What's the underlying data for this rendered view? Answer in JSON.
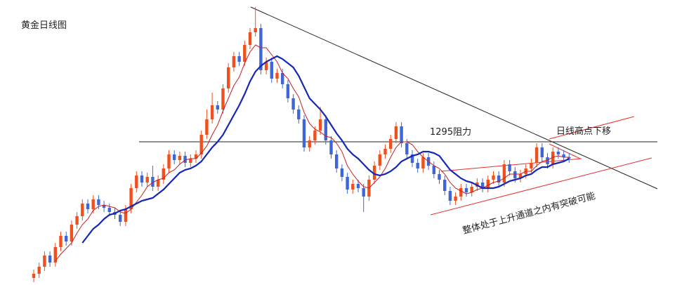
{
  "chart_data": {
    "type": "candlestick",
    "title": "黄金日线图",
    "ylim": [
      1193,
      1396
    ],
    "up_color": "#f0501e",
    "down_color": "#3e66d8",
    "open": [
      1198,
      1201,
      1206,
      1214,
      1209,
      1220,
      1228,
      1224,
      1236,
      1242,
      1251,
      1247,
      1254,
      1250,
      1248,
      1245,
      1243,
      1238,
      1247,
      1262,
      1271,
      1266,
      1270,
      1263,
      1268,
      1276,
      1286,
      1282,
      1285,
      1280,
      1283,
      1286,
      1300,
      1311,
      1321,
      1318,
      1333,
      1348,
      1356,
      1352,
      1364,
      1373,
      1376,
      1346,
      1352,
      1340,
      1344,
      1336,
      1326,
      1318,
      1311,
      1291,
      1296,
      1303,
      1311,
      1296,
      1286,
      1276,
      1270,
      1261,
      1265,
      1262,
      1256,
      1268,
      1278,
      1286,
      1290,
      1297,
      1306,
      1294,
      1286,
      1280,
      1276,
      1284,
      1278,
      1272,
      1268,
      1260,
      1253,
      1256,
      1262,
      1259,
      1263,
      1266,
      1262,
      1268,
      1271,
      1266,
      1279,
      1274,
      1269,
      1272,
      1276,
      1280,
      1291,
      1284,
      1279,
      1288,
      1286,
      1284
    ],
    "high": [
      1204,
      1209,
      1217,
      1217,
      1223,
      1231,
      1231,
      1239,
      1245,
      1254,
      1254,
      1257,
      1257,
      1253,
      1251,
      1248,
      1246,
      1250,
      1265,
      1274,
      1274,
      1273,
      1278,
      1271,
      1279,
      1289,
      1289,
      1288,
      1288,
      1286,
      1289,
      1303,
      1318,
      1330,
      1324,
      1336,
      1351,
      1359,
      1359,
      1367,
      1376,
      1391,
      1379,
      1355,
      1355,
      1347,
      1347,
      1339,
      1329,
      1321,
      1314,
      1299,
      1306,
      1320,
      1314,
      1299,
      1289,
      1279,
      1273,
      1268,
      1268,
      1265,
      1271,
      1281,
      1289,
      1293,
      1300,
      1309,
      1309,
      1297,
      1289,
      1283,
      1287,
      1287,
      1281,
      1275,
      1271,
      1263,
      1259,
      1265,
      1265,
      1266,
      1269,
      1269,
      1271,
      1274,
      1274,
      1282,
      1282,
      1277,
      1275,
      1279,
      1283,
      1294,
      1294,
      1287,
      1291,
      1291,
      1289,
      1287
    ],
    "low": [
      1195,
      1198,
      1203,
      1206,
      1206,
      1217,
      1221,
      1221,
      1233,
      1239,
      1244,
      1244,
      1247,
      1245,
      1242,
      1240,
      1235,
      1235,
      1244,
      1259,
      1263,
      1263,
      1260,
      1260,
      1265,
      1273,
      1279,
      1279,
      1277,
      1277,
      1280,
      1283,
      1297,
      1308,
      1315,
      1315,
      1330,
      1345,
      1349,
      1349,
      1361,
      1370,
      1343,
      1343,
      1337,
      1337,
      1333,
      1323,
      1315,
      1308,
      1288,
      1288,
      1293,
      1300,
      1293,
      1283,
      1273,
      1267,
      1258,
      1258,
      1259,
      1245,
      1253,
      1265,
      1275,
      1283,
      1287,
      1294,
      1291,
      1283,
      1277,
      1273,
      1273,
      1275,
      1269,
      1265,
      1257,
      1250,
      1250,
      1253,
      1256,
      1256,
      1260,
      1259,
      1259,
      1265,
      1263,
      1263,
      1271,
      1266,
      1266,
      1269,
      1273,
      1277,
      1281,
      1276,
      1276,
      1283,
      1281,
      1280
    ],
    "close": [
      1201,
      1206,
      1214,
      1209,
      1220,
      1228,
      1224,
      1236,
      1242,
      1251,
      1247,
      1254,
      1250,
      1248,
      1245,
      1243,
      1238,
      1247,
      1262,
      1271,
      1266,
      1270,
      1263,
      1268,
      1276,
      1286,
      1282,
      1285,
      1280,
      1283,
      1286,
      1300,
      1311,
      1321,
      1318,
      1333,
      1348,
      1356,
      1352,
      1364,
      1373,
      1376,
      1346,
      1352,
      1340,
      1344,
      1336,
      1326,
      1318,
      1311,
      1291,
      1296,
      1303,
      1311,
      1296,
      1286,
      1276,
      1270,
      1261,
      1265,
      1262,
      1256,
      1268,
      1278,
      1286,
      1290,
      1297,
      1306,
      1294,
      1286,
      1280,
      1276,
      1284,
      1278,
      1272,
      1268,
      1260,
      1253,
      1256,
      1262,
      1259,
      1263,
      1266,
      1262,
      1268,
      1271,
      1266,
      1279,
      1274,
      1269,
      1272,
      1276,
      1280,
      1291,
      1284,
      1279,
      1288,
      1286,
      1284,
      1283
    ],
    "lines": [
      {
        "color": "#c81e1e",
        "width": 1,
        "values": [
          null,
          null,
          null,
          null,
          1210,
          1215,
          1219,
          1223,
          1230,
          1236,
          1240,
          1246,
          1249,
          1250,
          1249,
          1248,
          1245,
          1244,
          1247,
          1252,
          1257,
          1263,
          1266,
          1268,
          1269,
          1273,
          1275,
          1279,
          1282,
          1283,
          1283,
          1287,
          1292,
          1300,
          1307,
          1317,
          1326,
          1335,
          1341,
          1351,
          1359,
          1364,
          1362,
          1362,
          1357,
          1352,
          1344,
          1340,
          1333,
          1327,
          1316,
          1308,
          1304,
          1302,
          1299,
          1298,
          1294,
          1288,
          1278,
          1272,
          1267,
          1263,
          1262,
          1266,
          1270,
          1276,
          1284,
          1291,
          1295,
          1295,
          1293,
          1288,
          1284,
          1281,
          1278,
          1276,
          1272,
          1266,
          1262,
          1260,
          1258,
          1259,
          1261,
          1262,
          1264,
          1266,
          1267,
          1269,
          1272,
          1272,
          1272,
          1274,
          1274,
          1278,
          1281,
          1282,
          1284,
          1285,
          1284,
          1284
        ]
      },
      {
        "color": "#1428b4",
        "width": 2.2,
        "values": [
          null,
          null,
          null,
          null,
          null,
          null,
          null,
          null,
          null,
          1223,
          1228,
          1233,
          1236,
          1240,
          1243,
          1244,
          1246,
          1247,
          1249,
          1251,
          1253,
          1254,
          1255,
          1258,
          1261,
          1265,
          1269,
          1273,
          1275,
          1276,
          1278,
          1281,
          1286,
          1291,
          1295,
          1300,
          1307,
          1314,
          1321,
          1329,
          1338,
          1345,
          1349,
          1352,
          1354,
          1356,
          1354,
          1351,
          1348,
          1342,
          1334,
          1326,
          1322,
          1318,
          1313,
          1307,
          1301,
          1296,
          1290,
          1286,
          1283,
          1279,
          1275,
          1272,
          1271,
          1272,
          1274,
          1277,
          1281,
          1283,
          1285,
          1286,
          1288,
          1288,
          1287,
          1285,
          1280,
          1275,
          1272,
          1269,
          1267,
          1266,
          1264,
          1262,
          1262,
          1262,
          1263,
          1265,
          1267,
          1268,
          1269,
          1271,
          1272,
          1275,
          1277,
          1277,
          1279,
          1280,
          1281,
          1283
        ]
      }
    ],
    "hlines": [
      {
        "value": 1295,
        "label": "1295阻力"
      }
    ],
    "annotations": [
      "日线高点下移",
      "整体处于上升通道之内有突破可能"
    ]
  }
}
